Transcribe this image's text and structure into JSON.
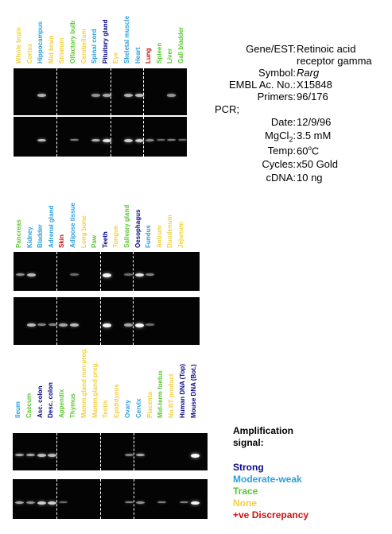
{
  "colors": {
    "strong": "#0a0a8c",
    "moderate_weak": "#2aa0e0",
    "trace": "#5ac832",
    "none": "#f2d040",
    "discrepancy": "#d01010"
  },
  "info": {
    "gene_key": "Gene/EST:",
    "gene_val": "Retinoic acid",
    "gene_val2": "receptor gamma",
    "symbol_key": "Symbol:",
    "symbol_val": "Rarg",
    "embl_key": "EMBL Ac. No.:",
    "embl_val": "X15848",
    "primers_key": "Primers:",
    "primers_val": "96/176",
    "pcr_key": "PCR;",
    "date_key": "Date:",
    "date_val": "12/9/96",
    "mgcl_key_a": "MgCl",
    "mgcl_key_sub": "2",
    "mgcl_key_b": ":",
    "mgcl_val": "3.5 mM",
    "temp_key": "Temp:",
    "temp_val_a": "60",
    "temp_val_sup": "o",
    "temp_val_b": "C",
    "cycles_key": "Cycles:",
    "cycles_val": "x50 Gold",
    "cdna_key": "cDNA:",
    "cdna_val": "10 ng"
  },
  "legend": {
    "title1": "Amplification",
    "title2": "signal:",
    "strong": "Strong",
    "moderate": "Moderate-weak",
    "trace": "Trace",
    "none": "None",
    "discrepancy": "+ve Discrepancy"
  },
  "panels": [
    {
      "lanes": [
        {
          "name": "Whole brain",
          "signal": "none",
          "top": 0.0,
          "bottom": 0.0
        },
        {
          "name": "Cortex",
          "signal": "none",
          "top": 0.0,
          "bottom": 0.0
        },
        {
          "name": "Hippocampus",
          "signal": "moderate_weak",
          "top": 0.55,
          "bottom": 0.6
        },
        {
          "name": "Mid brain",
          "signal": "none",
          "top": 0.0,
          "bottom": 0.0
        },
        {
          "name": "Striatum",
          "signal": "none",
          "top": 0.0,
          "bottom": 0.0
        },
        {
          "name": "Olfactory bulb",
          "signal": "trace",
          "top": 0.0,
          "bottom": 0.3
        },
        {
          "name": "Cerebellum",
          "signal": "none",
          "top": 0.0,
          "bottom": 0.0
        },
        {
          "name": "Spinal cord",
          "signal": "moderate_weak",
          "top": 0.4,
          "bottom": 0.55
        },
        {
          "name": "Pituitary gland",
          "signal": "strong",
          "top": 0.5,
          "bottom": 0.8
        },
        {
          "name": "Eye",
          "signal": "none",
          "top": 0.0,
          "bottom": 0.0
        },
        {
          "name": "Skeletal muscle",
          "signal": "moderate_weak",
          "top": 0.55,
          "bottom": 0.7
        },
        {
          "name": "Heart",
          "signal": "moderate_weak",
          "top": 0.6,
          "bottom": 0.7
        },
        {
          "name": "Lung",
          "signal": "discrepancy",
          "top": 0.0,
          "bottom": 0.35
        },
        {
          "name": "Spleen",
          "signal": "trace",
          "top": 0.0,
          "bottom": 0.2
        },
        {
          "name": "Liver",
          "signal": "trace",
          "top": 0.4,
          "bottom": 0.3
        },
        {
          "name": "Gall bladder",
          "signal": "trace",
          "top": 0.0,
          "bottom": 0.2
        }
      ]
    },
    {
      "lanes": [
        {
          "name": "Pancreas",
          "signal": "trace",
          "top": 0.4,
          "bottom": 0.0
        },
        {
          "name": "Kidney",
          "signal": "moderate_weak",
          "top": 0.6,
          "bottom": 0.6
        },
        {
          "name": "Bladder",
          "signal": "moderate_weak",
          "top": 0.0,
          "bottom": 0.3
        },
        {
          "name": "Adrenal gland",
          "signal": "moderate_weak",
          "top": 0.0,
          "bottom": 0.3
        },
        {
          "name": "Skin",
          "signal": "discrepancy",
          "top": 0.0,
          "bottom": 0.5
        },
        {
          "name": "Adipose tissue",
          "signal": "moderate_weak",
          "top": 0.2,
          "bottom": 0.6
        },
        {
          "name": "Long bone",
          "signal": "none",
          "top": 0.0,
          "bottom": 0.0
        },
        {
          "name": "Paw",
          "signal": "trace",
          "top": 0.0,
          "bottom": 0.0
        },
        {
          "name": "Teeth",
          "signal": "strong",
          "top": 0.9,
          "bottom": 0.9
        },
        {
          "name": "Tongue",
          "signal": "none",
          "top": 0.0,
          "bottom": 0.0
        },
        {
          "name": "Salivary gland",
          "signal": "trace",
          "top": 0.2,
          "bottom": 0.5
        },
        {
          "name": "Oesophagus",
          "signal": "strong",
          "top": 0.8,
          "bottom": 0.9
        },
        {
          "name": "Fundus",
          "signal": "moderate_weak",
          "top": 0.3,
          "bottom": 0.2
        },
        {
          "name": "Antrum",
          "signal": "none",
          "top": 0.0,
          "bottom": 0.0
        },
        {
          "name": "Duodenum",
          "signal": "none",
          "top": 0.0,
          "bottom": 0.0
        },
        {
          "name": "Jejunum",
          "signal": "none",
          "top": 0.0,
          "bottom": 0.0
        }
      ]
    },
    {
      "lanes": [
        {
          "name": "Ileum",
          "signal": "moderate_weak",
          "top": 0.5,
          "bottom": 0.5
        },
        {
          "name": "Caecum",
          "signal": "trace",
          "top": 0.5,
          "bottom": 0.4
        },
        {
          "name": "Asc. colon",
          "signal": "strong",
          "top": 0.6,
          "bottom": 0.7
        },
        {
          "name": "Desc. colon",
          "signal": "strong",
          "top": 0.6,
          "bottom": 0.7
        },
        {
          "name": "Appendix",
          "signal": "trace",
          "top": 0.0,
          "bottom": 0.2
        },
        {
          "name": "Thymus",
          "signal": "trace",
          "top": 0.0,
          "bottom": 0.0
        },
        {
          "name": "Mamm.gland non-preg.",
          "signal": "none",
          "top": 0.0,
          "bottom": 0.0
        },
        {
          "name": "Mamm.gland preg.",
          "signal": "none",
          "top": 0.0,
          "bottom": 0.0
        },
        {
          "name": "Testis",
          "signal": "none",
          "top": 0.0,
          "bottom": 0.0
        },
        {
          "name": "Epididymis",
          "signal": "none",
          "top": 0.0,
          "bottom": 0.0
        },
        {
          "name": "Ovary",
          "signal": "moderate_weak",
          "top": 0.3,
          "bottom": 0.3
        },
        {
          "name": "Cervix",
          "signal": "moderate_weak",
          "top": 0.5,
          "bottom": 0.4
        },
        {
          "name": "Placenta",
          "signal": "none",
          "top": 0.0,
          "bottom": 0.0
        },
        {
          "name": "Mid-term foetus",
          "signal": "trace",
          "top": 0.0,
          "bottom": 0.3
        },
        {
          "name": "No RT product",
          "signal": "none",
          "top": 0.0,
          "bottom": 0.0
        },
        {
          "name": "Human DNA (Top)",
          "signal": "strong",
          "top": 0.0,
          "bottom": 0.3
        },
        {
          "name": "Mouse DNA (Bot.)",
          "signal": "strong",
          "top": 0.9,
          "bottom": 0.9
        }
      ]
    }
  ]
}
